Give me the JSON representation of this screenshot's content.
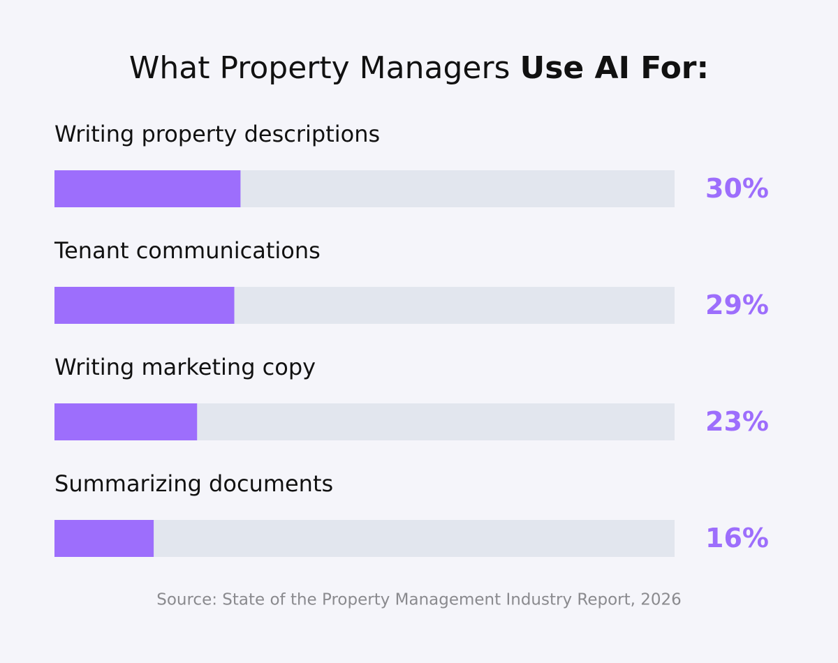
{
  "chart_data": {
    "type": "bar",
    "orientation": "horizontal",
    "title": "What Property Managers",
    "title_emphasis": "Use AI For:",
    "categories": [
      "Writing property descriptions",
      "Tenant communications",
      "Writing marketing copy",
      "Summarizing documents"
    ],
    "values": [
      30,
      29,
      23,
      16
    ],
    "value_labels": [
      "30%",
      "29%",
      "23%",
      "16%"
    ],
    "xlim": [
      0,
      100
    ],
    "color": "#9d6efc",
    "track_color": "#e2e6ee",
    "source": "Source: State of the Property Management Industry Report, 2026"
  }
}
